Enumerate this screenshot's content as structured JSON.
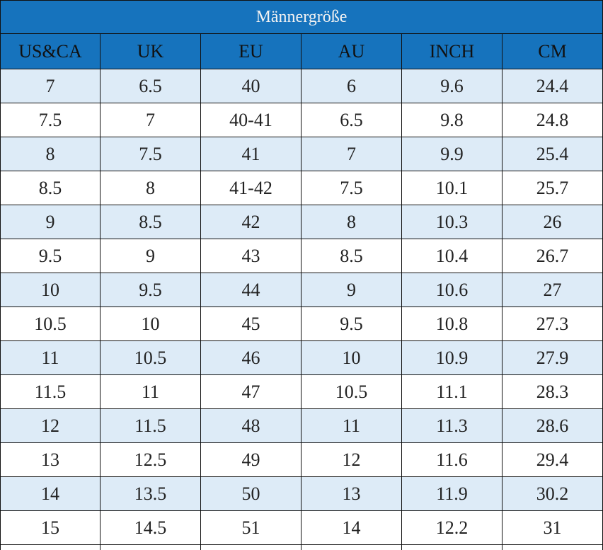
{
  "table": {
    "title": "Männergröße",
    "header": [
      "US&CA",
      "UK",
      "EU",
      "AU",
      "INCH",
      "CM"
    ],
    "rows": [
      [
        "7",
        "6.5",
        "40",
        "6",
        "9.6",
        "24.4"
      ],
      [
        "7.5",
        "7",
        "40-41",
        "6.5",
        "9.8",
        "24.8"
      ],
      [
        "8",
        "7.5",
        "41",
        "7",
        "9.9",
        "25.4"
      ],
      [
        "8.5",
        "8",
        "41-42",
        "7.5",
        "10.1",
        "25.7"
      ],
      [
        "9",
        "8.5",
        "42",
        "8",
        "10.3",
        "26"
      ],
      [
        "9.5",
        "9",
        "43",
        "8.5",
        "10.4",
        "26.7"
      ],
      [
        "10",
        "9.5",
        "44",
        "9",
        "10.6",
        "27"
      ],
      [
        "10.5",
        "10",
        "45",
        "9.5",
        "10.8",
        "27.3"
      ],
      [
        "11",
        "10.5",
        "46",
        "10",
        "10.9",
        "27.9"
      ],
      [
        "11.5",
        "11",
        "47",
        "10.5",
        "11.1",
        "28.3"
      ],
      [
        "12",
        "11.5",
        "48",
        "11",
        "11.3",
        "28.6"
      ],
      [
        "13",
        "12.5",
        "49",
        "12",
        "11.6",
        "29.4"
      ],
      [
        "14",
        "13.5",
        "50",
        "13",
        "11.9",
        "30.2"
      ],
      [
        "15",
        "14.5",
        "51",
        "14",
        "12.2",
        "31"
      ]
    ]
  }
}
